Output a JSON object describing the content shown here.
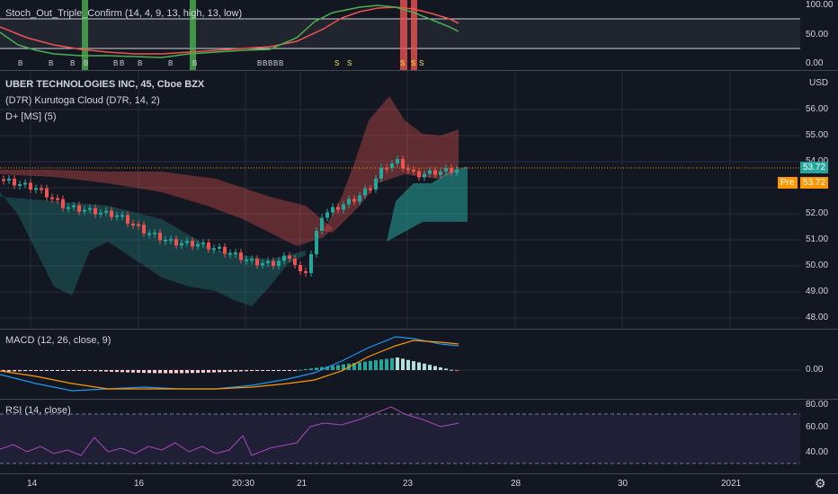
{
  "stoch_pane": {
    "title": "Stoch_Out_Triple_Confirm (14, 4, 9, 13, high, 13, low)",
    "ticks": [
      "100.00",
      "50.00",
      "0.00"
    ],
    "signals": [
      "B",
      "B",
      "B",
      "B",
      "B",
      "B",
      "B",
      "B",
      "B",
      "B",
      "B",
      "B",
      "B",
      "B",
      "S",
      "S",
      "S",
      "S",
      "S"
    ]
  },
  "main_pane": {
    "symbol_title": "UBER TECHNOLOGIES INC, 45, Cboe BZX",
    "indicator1": "(D7R) Kurutoga Cloud (D7R, 14, 2)",
    "indicator2": "D+ [MS] (5)",
    "currency": "USD",
    "price_ticks": [
      "56.00",
      "55.00",
      "54.00",
      "53.00",
      "52.00",
      "51.00",
      "50.00",
      "49.00",
      "48.00"
    ],
    "last_price": "53.72",
    "pre_label": "Pre",
    "pre_price": "53.72",
    "colors": {
      "up": "#26a69a",
      "down": "#ef5350",
      "pre": "#ff9800"
    }
  },
  "macd_pane": {
    "title": "MACD (12, 26, close, 9)",
    "ticks": [
      "0.00"
    ]
  },
  "rsi_pane": {
    "title": "RSI (14, close)",
    "ticks": [
      "80.00",
      "60.00",
      "40.00"
    ]
  },
  "time_axis": [
    "14",
    "16",
    "20:30",
    "21",
    "23",
    "28",
    "30",
    "2021"
  ]
}
